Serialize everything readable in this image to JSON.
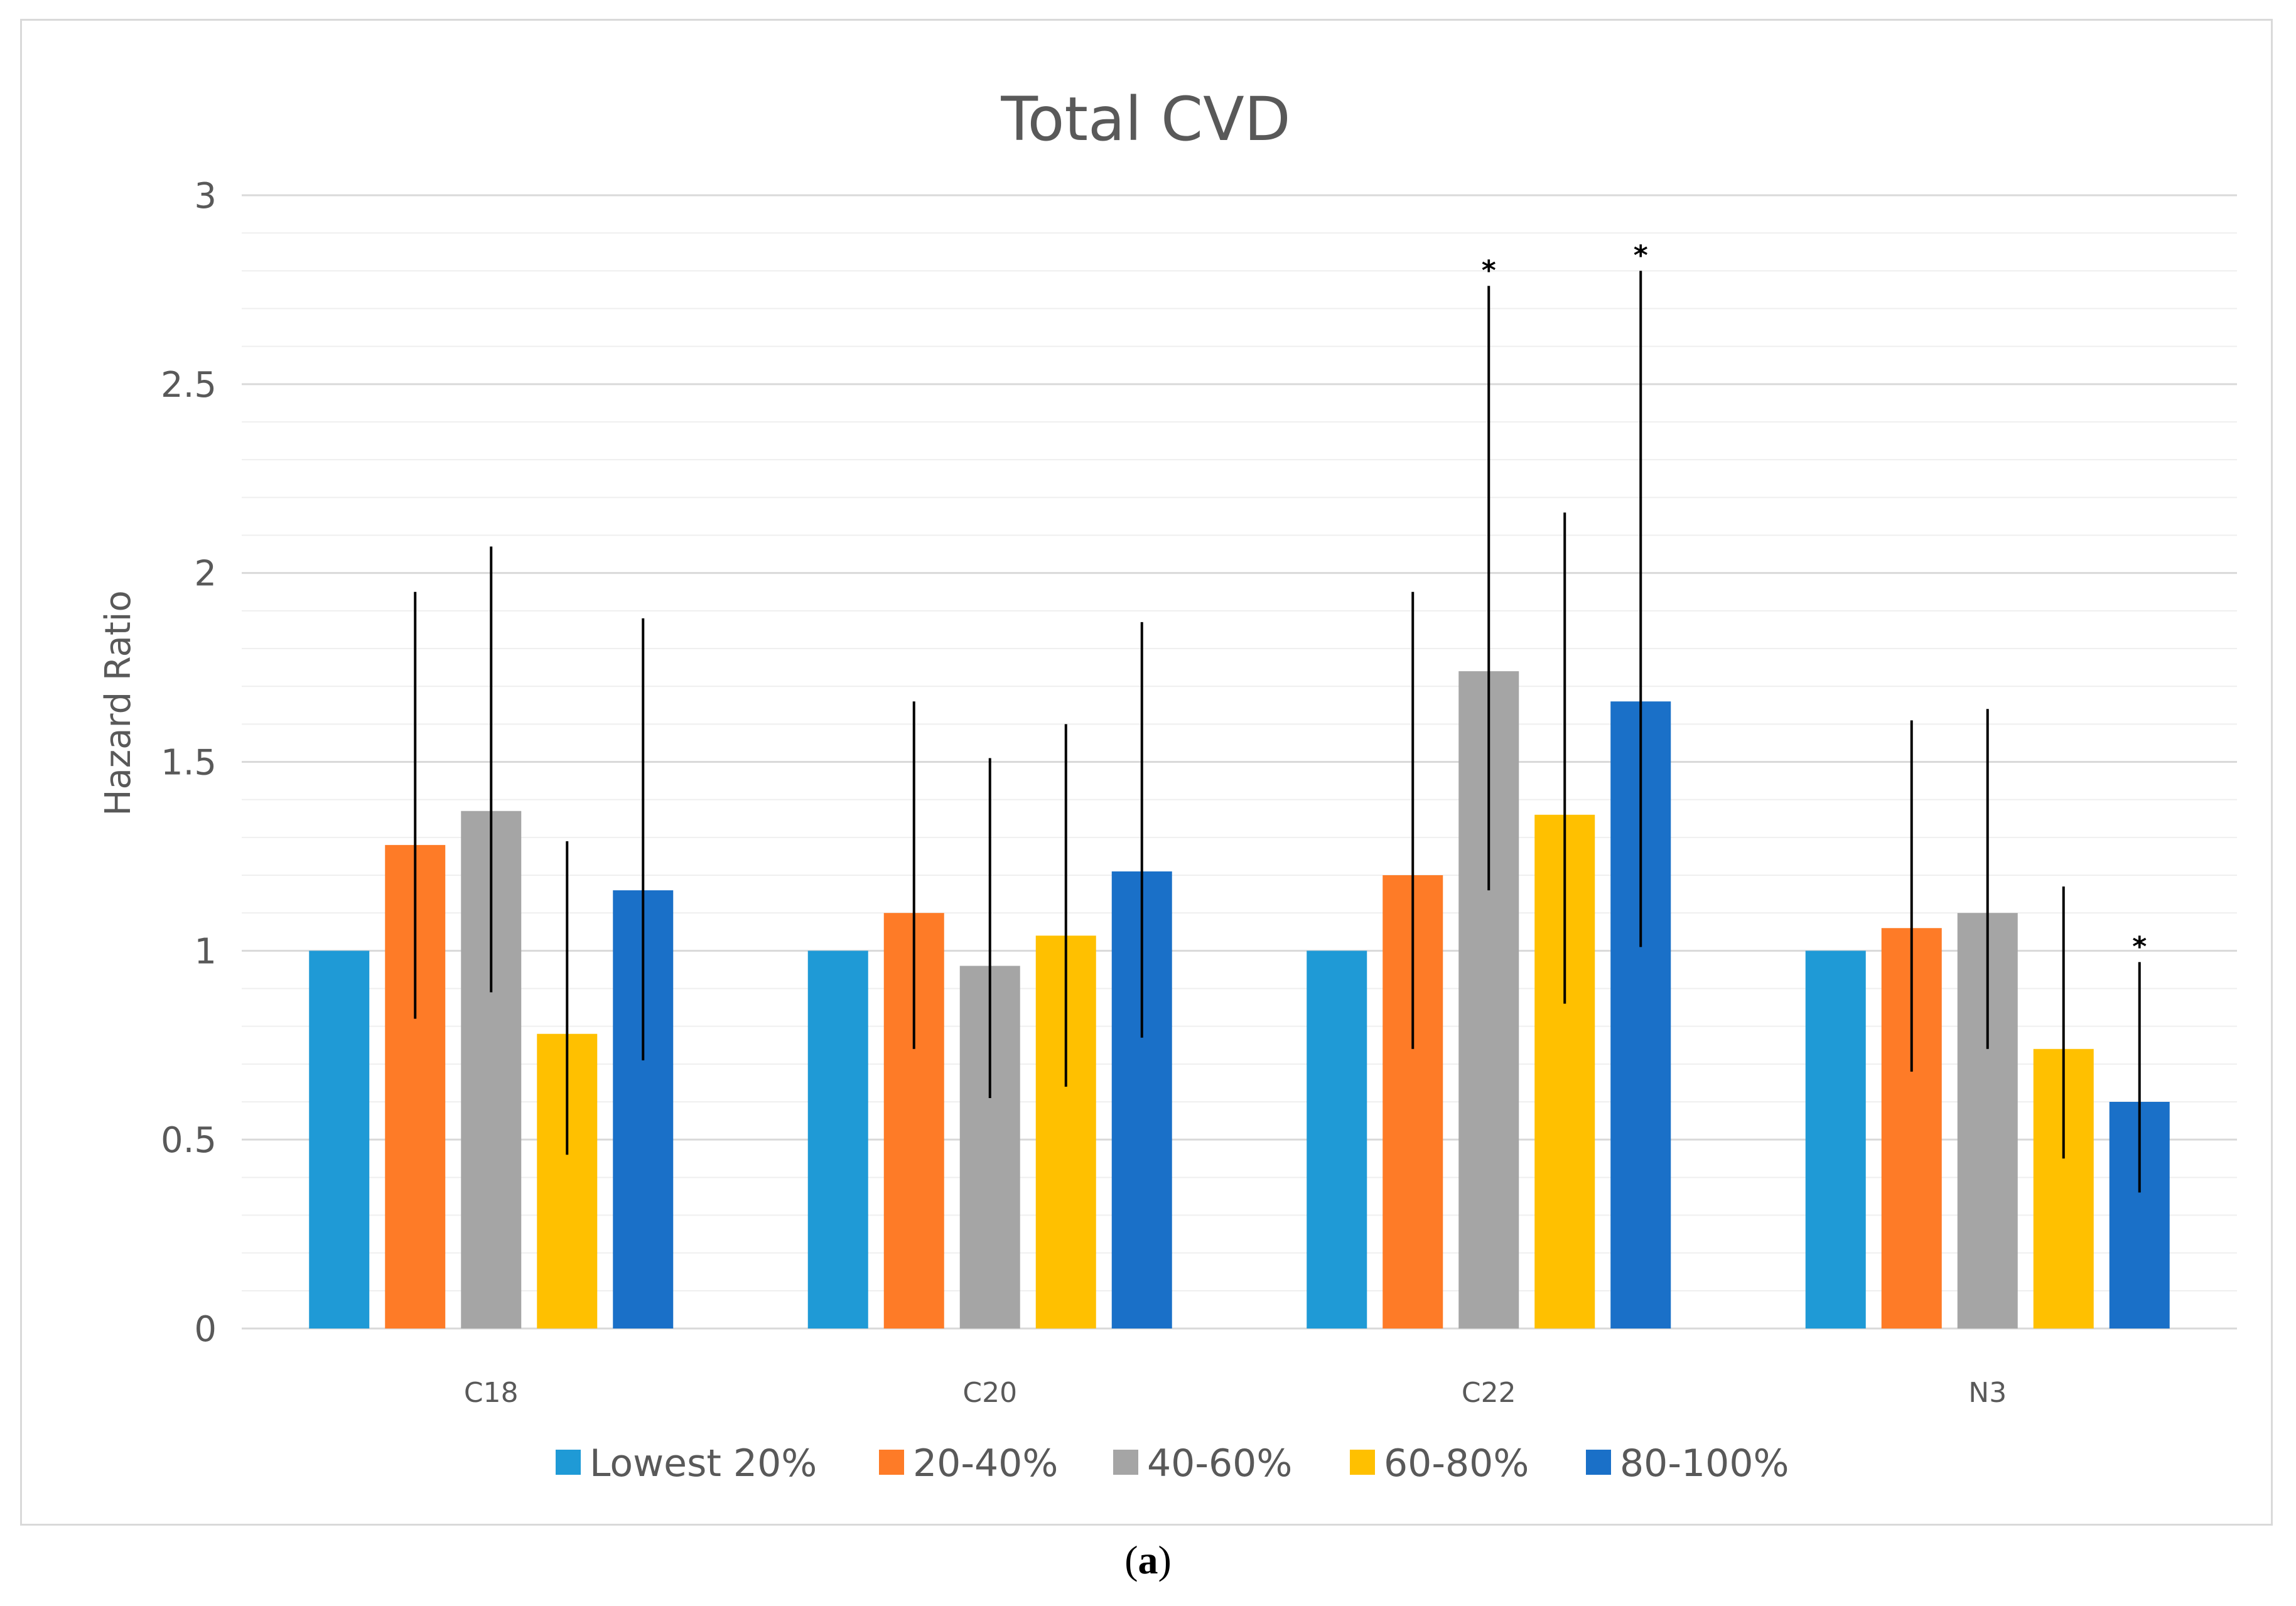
{
  "caption": {
    "open": "(",
    "letter": "a",
    "close": ")"
  },
  "chart_data": {
    "type": "bar",
    "title": "Total CVD",
    "xlabel": "",
    "ylabel": "Hazard Ratio",
    "ylim": [
      0,
      3
    ],
    "yticks": [
      "0",
      "0.5",
      "1",
      "1.5",
      "2",
      "2.5",
      "3"
    ],
    "minor_grid_step": 0.1,
    "grid": true,
    "legend_position": "bottom",
    "categories": [
      "C18",
      "C20",
      "C22",
      "N3"
    ],
    "series": [
      {
        "name": "Lowest 20%",
        "color": "#1f9ad6",
        "values": [
          1.0,
          1.0,
          1.0,
          1.0
        ],
        "ci_low": [
          null,
          null,
          null,
          null
        ],
        "ci_high": [
          null,
          null,
          null,
          null
        ],
        "significant": [
          false,
          false,
          false,
          false
        ]
      },
      {
        "name": "20-40%",
        "color": "#fe7b27",
        "values": [
          1.28,
          1.1,
          1.2,
          1.06
        ],
        "ci_low": [
          0.82,
          0.74,
          0.74,
          0.68
        ],
        "ci_high": [
          1.95,
          1.66,
          1.95,
          1.61
        ],
        "significant": [
          false,
          false,
          false,
          false
        ]
      },
      {
        "name": "40-60%",
        "color": "#a5a5a5",
        "values": [
          1.37,
          0.96,
          1.74,
          1.1
        ],
        "ci_low": [
          0.89,
          0.61,
          1.16,
          0.74
        ],
        "ci_high": [
          2.07,
          1.51,
          2.76,
          1.64
        ],
        "significant": [
          false,
          false,
          true,
          false
        ]
      },
      {
        "name": "60-80%",
        "color": "#ffc000",
        "values": [
          0.78,
          1.04,
          1.36,
          0.74
        ],
        "ci_low": [
          0.46,
          0.64,
          0.86,
          0.45
        ],
        "ci_high": [
          1.29,
          1.6,
          2.16,
          1.17
        ],
        "significant": [
          false,
          false,
          false,
          false
        ]
      },
      {
        "name": "80-100%",
        "color": "#1a70c8",
        "values": [
          1.16,
          1.21,
          1.66,
          0.6
        ],
        "ci_low": [
          0.71,
          0.77,
          1.01,
          0.36
        ],
        "ci_high": [
          1.88,
          1.87,
          2.8,
          0.97
        ],
        "significant": [
          false,
          false,
          true,
          true
        ]
      }
    ],
    "significance_marker": "*"
  }
}
